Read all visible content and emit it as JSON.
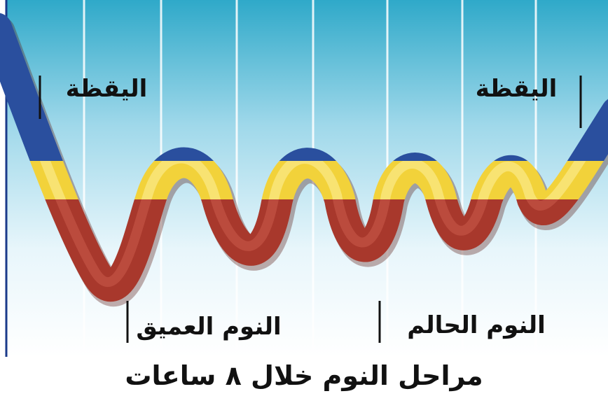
{
  "labels": {
    "wake_left": "اليقظة",
    "wake_right": "اليقظة",
    "deep_sleep": "النوم العميق",
    "dream_sleep": "النوم الحالم"
  },
  "caption": "مراحل النوم خلال ٨ ساعات",
  "colors": {
    "sky_top": "#2fa9c9",
    "sky_bottom": "#ffffff",
    "awake_band": "#2a4f9e",
    "light_band": "#f2d23a",
    "deep_band": "#a8382c",
    "grid_line": "#ffffff",
    "border": "#1a3a8a"
  }
}
